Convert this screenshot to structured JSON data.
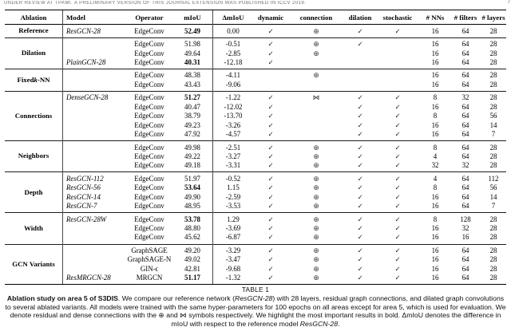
{
  "page": {
    "running_header": "UNDER REVIEW AT TPAMI. A PRELIMINARY VERSION OF THIS JOURNAL EXTENSION WAS PUBLISHED IN ICCV 2019.",
    "page_number": "7"
  },
  "icons": {
    "check": "check-icon",
    "residual": "residual-connection-icon",
    "dense": "dense-connection-icon"
  },
  "table": {
    "columns": [
      "Ablation",
      "Model",
      "Operator",
      "mIoU",
      "ΔmIoU",
      "dynamic",
      "connection",
      "dilation",
      "stochastic",
      "# NNs",
      "# filters",
      "# layers"
    ],
    "groups": [
      {
        "label": [
          {
            "t": "Reference"
          }
        ],
        "rows": [
          {
            "model": "ResGCN-28",
            "operator": "EdgeConv",
            "miou": "52.49",
            "bold": true,
            "dmiou": "0.00",
            "dynamic": "✓",
            "connection": "⊕",
            "dilation": "✓",
            "stochastic": "✓",
            "nns": "16",
            "filters": "64",
            "layers": "28"
          }
        ]
      },
      {
        "label": [
          {
            "t": "Dilation"
          }
        ],
        "rows": [
          {
            "model": "",
            "operator": "EdgeConv",
            "miou": "51.98",
            "bold": false,
            "dmiou": "-0.51",
            "dynamic": "✓",
            "connection": "⊕",
            "dilation": "✓",
            "stochastic": "",
            "nns": "16",
            "filters": "64",
            "layers": "28"
          },
          {
            "model": "",
            "operator": "EdgeConv",
            "miou": "49.64",
            "bold": false,
            "dmiou": "-2.85",
            "dynamic": "✓",
            "connection": "⊕",
            "dilation": "",
            "stochastic": "",
            "nns": "16",
            "filters": "64",
            "layers": "28"
          },
          {
            "model": "PlainGCN-28",
            "operator": "EdgeConv",
            "miou": "40.31",
            "bold": true,
            "dmiou": "-12.18",
            "dynamic": "✓",
            "connection": "",
            "dilation": "",
            "stochastic": "",
            "nns": "16",
            "filters": "64",
            "layers": "28"
          }
        ]
      },
      {
        "label": [
          {
            "t": "Fixed "
          },
          {
            "t": "k",
            "i": true
          },
          {
            "t": "-NN"
          }
        ],
        "rows": [
          {
            "model": "",
            "operator": "EdgeConv",
            "miou": "48.38",
            "bold": false,
            "dmiou": "-4.11",
            "dynamic": "",
            "connection": "⊕",
            "dilation": "",
            "stochastic": "",
            "nns": "16",
            "filters": "64",
            "layers": "28"
          },
          {
            "model": "",
            "operator": "EdgeConv",
            "miou": "43.43",
            "bold": false,
            "dmiou": "-9.06",
            "dynamic": "",
            "connection": "",
            "dilation": "",
            "stochastic": "",
            "nns": "16",
            "filters": "64",
            "layers": "28"
          }
        ]
      },
      {
        "label": [
          {
            "t": "Connections"
          }
        ],
        "rows": [
          {
            "model": "DenseGCN-28",
            "operator": "EdgeConv",
            "miou": "51.27",
            "bold": true,
            "dmiou": "-1.22",
            "dynamic": "✓",
            "connection": "⋈",
            "dilation": "✓",
            "stochastic": "✓",
            "nns": "8",
            "filters": "32",
            "layers": "28"
          },
          {
            "model": "",
            "operator": "EdgeConv",
            "miou": "40.47",
            "bold": false,
            "dmiou": "-12.02",
            "dynamic": "✓",
            "connection": "",
            "dilation": "✓",
            "stochastic": "✓",
            "nns": "16",
            "filters": "64",
            "layers": "28"
          },
          {
            "model": "",
            "operator": "EdgeConv",
            "miou": "38.79",
            "bold": false,
            "dmiou": "-13.70",
            "dynamic": "✓",
            "connection": "",
            "dilation": "✓",
            "stochastic": "✓",
            "nns": "8",
            "filters": "64",
            "layers": "56"
          },
          {
            "model": "",
            "operator": "EdgeConv",
            "miou": "49.23",
            "bold": false,
            "dmiou": "-3.26",
            "dynamic": "✓",
            "connection": "",
            "dilation": "✓",
            "stochastic": "✓",
            "nns": "16",
            "filters": "64",
            "layers": "14"
          },
          {
            "model": "",
            "operator": "EdgeConv",
            "miou": "47.92",
            "bold": false,
            "dmiou": "-4.57",
            "dynamic": "✓",
            "connection": "",
            "dilation": "✓",
            "stochastic": "✓",
            "nns": "16",
            "filters": "64",
            "layers": "7"
          }
        ]
      },
      {
        "label": [
          {
            "t": "Neighbors"
          }
        ],
        "rows": [
          {
            "model": "",
            "operator": "EdgeConv",
            "miou": "49.98",
            "bold": false,
            "dmiou": "-2.51",
            "dynamic": "✓",
            "connection": "⊕",
            "dilation": "✓",
            "stochastic": "✓",
            "nns": "8",
            "filters": "64",
            "layers": "28"
          },
          {
            "model": "",
            "operator": "EdgeConv",
            "miou": "49.22",
            "bold": false,
            "dmiou": "-3.27",
            "dynamic": "✓",
            "connection": "⊕",
            "dilation": "✓",
            "stochastic": "✓",
            "nns": "4",
            "filters": "64",
            "layers": "28"
          },
          {
            "model": "",
            "operator": "EdgeConv",
            "miou": "49.18",
            "bold": false,
            "dmiou": "-3.31",
            "dynamic": "✓",
            "connection": "⊕",
            "dilation": "✓",
            "stochastic": "✓",
            "nns": "32",
            "filters": "32",
            "layers": "28"
          }
        ]
      },
      {
        "label": [
          {
            "t": "Depth"
          }
        ],
        "rows": [
          {
            "model": "ResGCN-112",
            "operator": "EdgeConv",
            "miou": "51.97",
            "bold": false,
            "dmiou": "-0.52",
            "dynamic": "✓",
            "connection": "⊕",
            "dilation": "✓",
            "stochastic": "✓",
            "nns": "4",
            "filters": "64",
            "layers": "112"
          },
          {
            "model": "ResGCN-56",
            "operator": "EdgeConv",
            "miou": "53.64",
            "bold": true,
            "dmiou": "1.15",
            "dynamic": "✓",
            "connection": "⊕",
            "dilation": "✓",
            "stochastic": "✓",
            "nns": "8",
            "filters": "64",
            "layers": "56"
          },
          {
            "model": "ResGCN-14",
            "operator": "EdgeConv",
            "miou": "49.90",
            "bold": false,
            "dmiou": "-2.59",
            "dynamic": "✓",
            "connection": "⊕",
            "dilation": "✓",
            "stochastic": "✓",
            "nns": "16",
            "filters": "64",
            "layers": "14"
          },
          {
            "model": "ResGCN-7",
            "operator": "EdgeConv",
            "miou": "48.95",
            "bold": false,
            "dmiou": "-3.53",
            "dynamic": "✓",
            "connection": "⊕",
            "dilation": "✓",
            "stochastic": "✓",
            "nns": "16",
            "filters": "64",
            "layers": "7"
          }
        ]
      },
      {
        "label": [
          {
            "t": "Width"
          }
        ],
        "rows": [
          {
            "model": "ResGCN-28W",
            "operator": "EdgeConv",
            "miou": "53.78",
            "bold": true,
            "dmiou": "1.29",
            "dynamic": "✓",
            "connection": "⊕",
            "dilation": "✓",
            "stochastic": "✓",
            "nns": "8",
            "filters": "128",
            "layers": "28"
          },
          {
            "model": "",
            "operator": "EdgeConv",
            "miou": "48.80",
            "bold": false,
            "dmiou": "-3.69",
            "dynamic": "✓",
            "connection": "⊕",
            "dilation": "✓",
            "stochastic": "✓",
            "nns": "16",
            "filters": "32",
            "layers": "28"
          },
          {
            "model": "",
            "operator": "EdgeConv",
            "miou": "45.62",
            "bold": false,
            "dmiou": "-6.87",
            "dynamic": "✓",
            "connection": "⊕",
            "dilation": "✓",
            "stochastic": "✓",
            "nns": "16",
            "filters": "16",
            "layers": "28"
          }
        ]
      },
      {
        "label": [
          {
            "t": "GCN Variants"
          }
        ],
        "rows": [
          {
            "model": "",
            "operator": "GraphSAGE",
            "miou": "49.20",
            "bold": false,
            "dmiou": "-3.29",
            "dynamic": "✓",
            "connection": "⊕",
            "dilation": "✓",
            "stochastic": "✓",
            "nns": "16",
            "filters": "64",
            "layers": "28"
          },
          {
            "model": "",
            "operator": "GraphSAGE-N",
            "miou": "49.02",
            "bold": false,
            "dmiou": "-3.47",
            "dynamic": "✓",
            "connection": "⊕",
            "dilation": "✓",
            "stochastic": "✓",
            "nns": "16",
            "filters": "64",
            "layers": "28"
          },
          {
            "model": "",
            "operator": "GIN-ϵ",
            "miou": "42.81",
            "bold": false,
            "dmiou": "-9.68",
            "dynamic": "✓",
            "connection": "⊕",
            "dilation": "✓",
            "stochastic": "✓",
            "nns": "16",
            "filters": "64",
            "layers": "28"
          },
          {
            "model": "ResMRGCN-28",
            "operator": "MRGCN",
            "miou": "51.17",
            "bold": true,
            "dmiou": "-1.32",
            "dynamic": "✓",
            "connection": "⊕",
            "dilation": "✓",
            "stochastic": "✓",
            "nns": "16",
            "filters": "64",
            "layers": "28"
          }
        ]
      }
    ]
  },
  "caption": {
    "label": "TABLE 1",
    "parts": [
      {
        "t": "Ablation study on area 5 of S3DIS",
        "b": true
      },
      {
        "t": ". We compare our reference network ("
      },
      {
        "t": "ResGCN-28",
        "i": true
      },
      {
        "t": ") with 28 layers, residual graph connections, and dilated graph convolutions to several ablated variants. All models were trained with the same hyper-parameters for 100 epochs on all areas except for area 5, which is used for evaluation. We denote residual and dense connections with the ⊕ and ⋈ symbols respectively. We highlight the most important results in bold. ΔmIoU denotes the difference in mIoU with respect to the reference model "
      },
      {
        "t": "ResGCN-28",
        "i": true
      },
      {
        "t": "."
      }
    ]
  }
}
